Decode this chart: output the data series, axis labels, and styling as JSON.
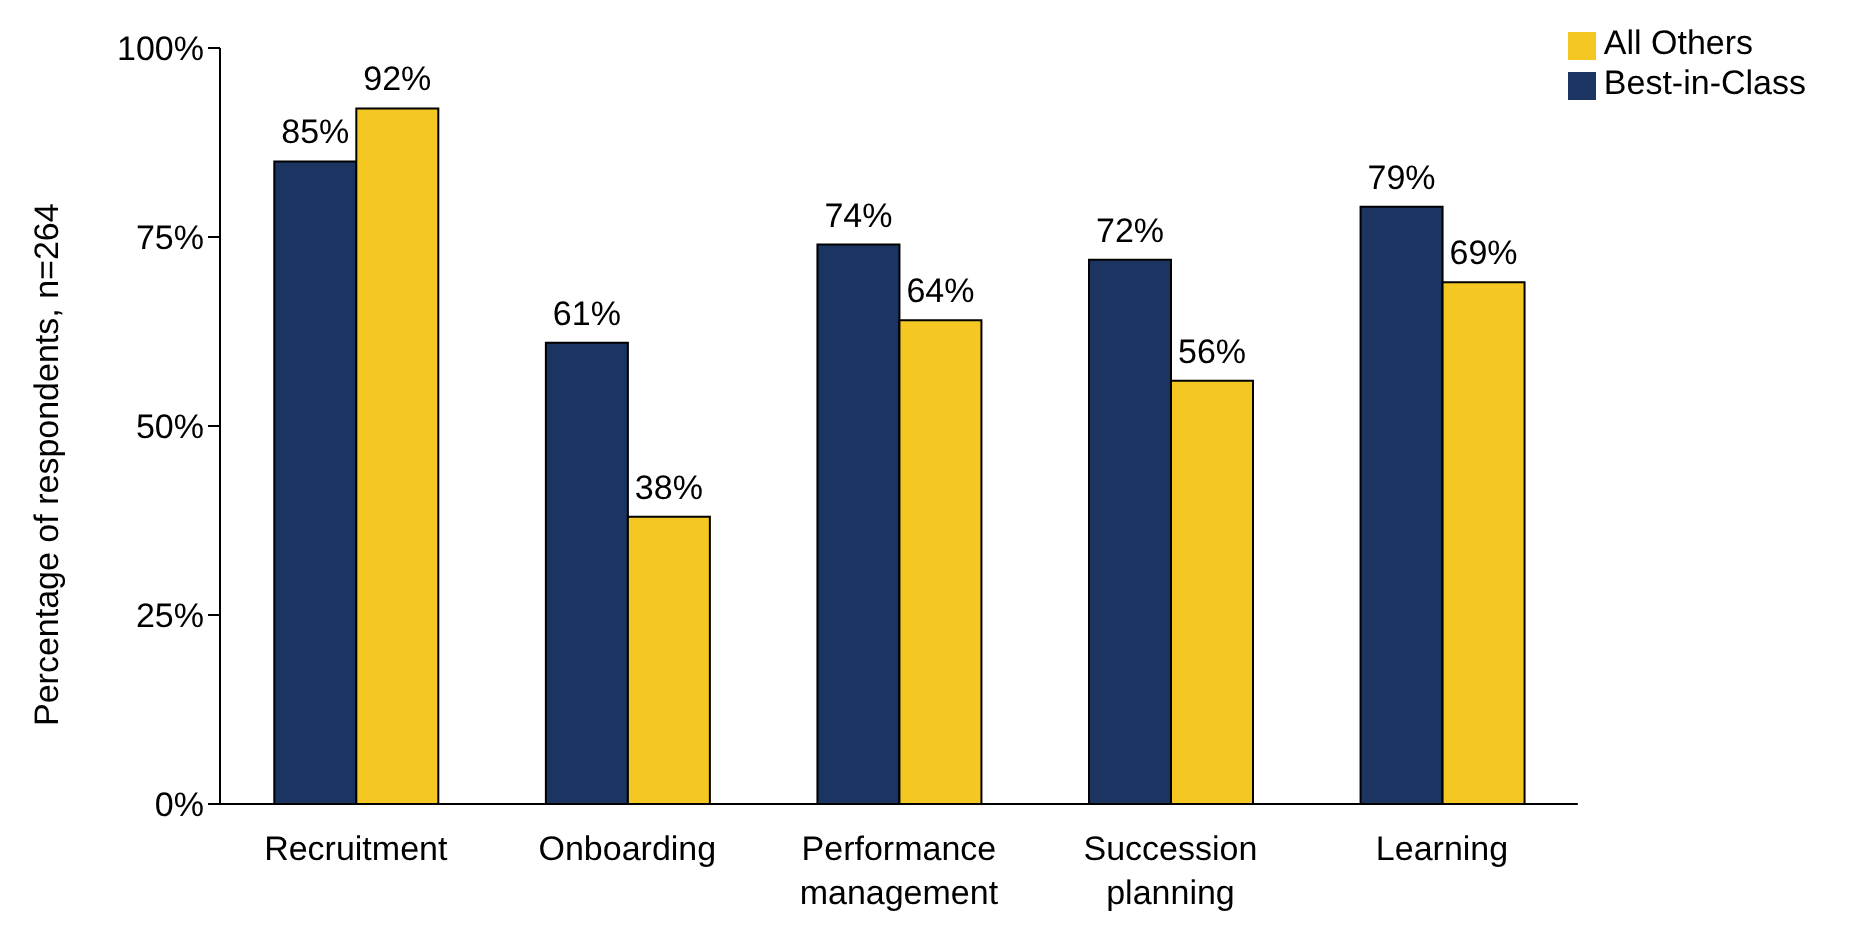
{
  "chart_data": {
    "type": "bar",
    "ylabel": "Percentage of respondents, n=264",
    "categories": [
      "Recruitment",
      "Onboarding",
      "Performance management",
      "Succession planning",
      "Learning"
    ],
    "series": [
      {
        "name": "Best-in-Class",
        "color": "#1c3461",
        "values": [
          85,
          61,
          74,
          72,
          79
        ],
        "value_labels": [
          "85%",
          "61%",
          "74%",
          "72%",
          "79%"
        ]
      },
      {
        "name": "All Others",
        "color": "#f5c723",
        "values": [
          92,
          38,
          64,
          56,
          69
        ],
        "value_labels": [
          "92%",
          "38%",
          "64%",
          "56%",
          "69%"
        ]
      }
    ],
    "ylim": [
      0,
      100
    ],
    "yticks": [
      {
        "value": 0,
        "label": "0%"
      },
      {
        "value": 25,
        "label": "25%"
      },
      {
        "value": 50,
        "label": "50%"
      },
      {
        "value": 75,
        "label": "75%"
      },
      {
        "value": 100,
        "label": "100%"
      }
    ],
    "grid": false,
    "legend": "top right"
  }
}
